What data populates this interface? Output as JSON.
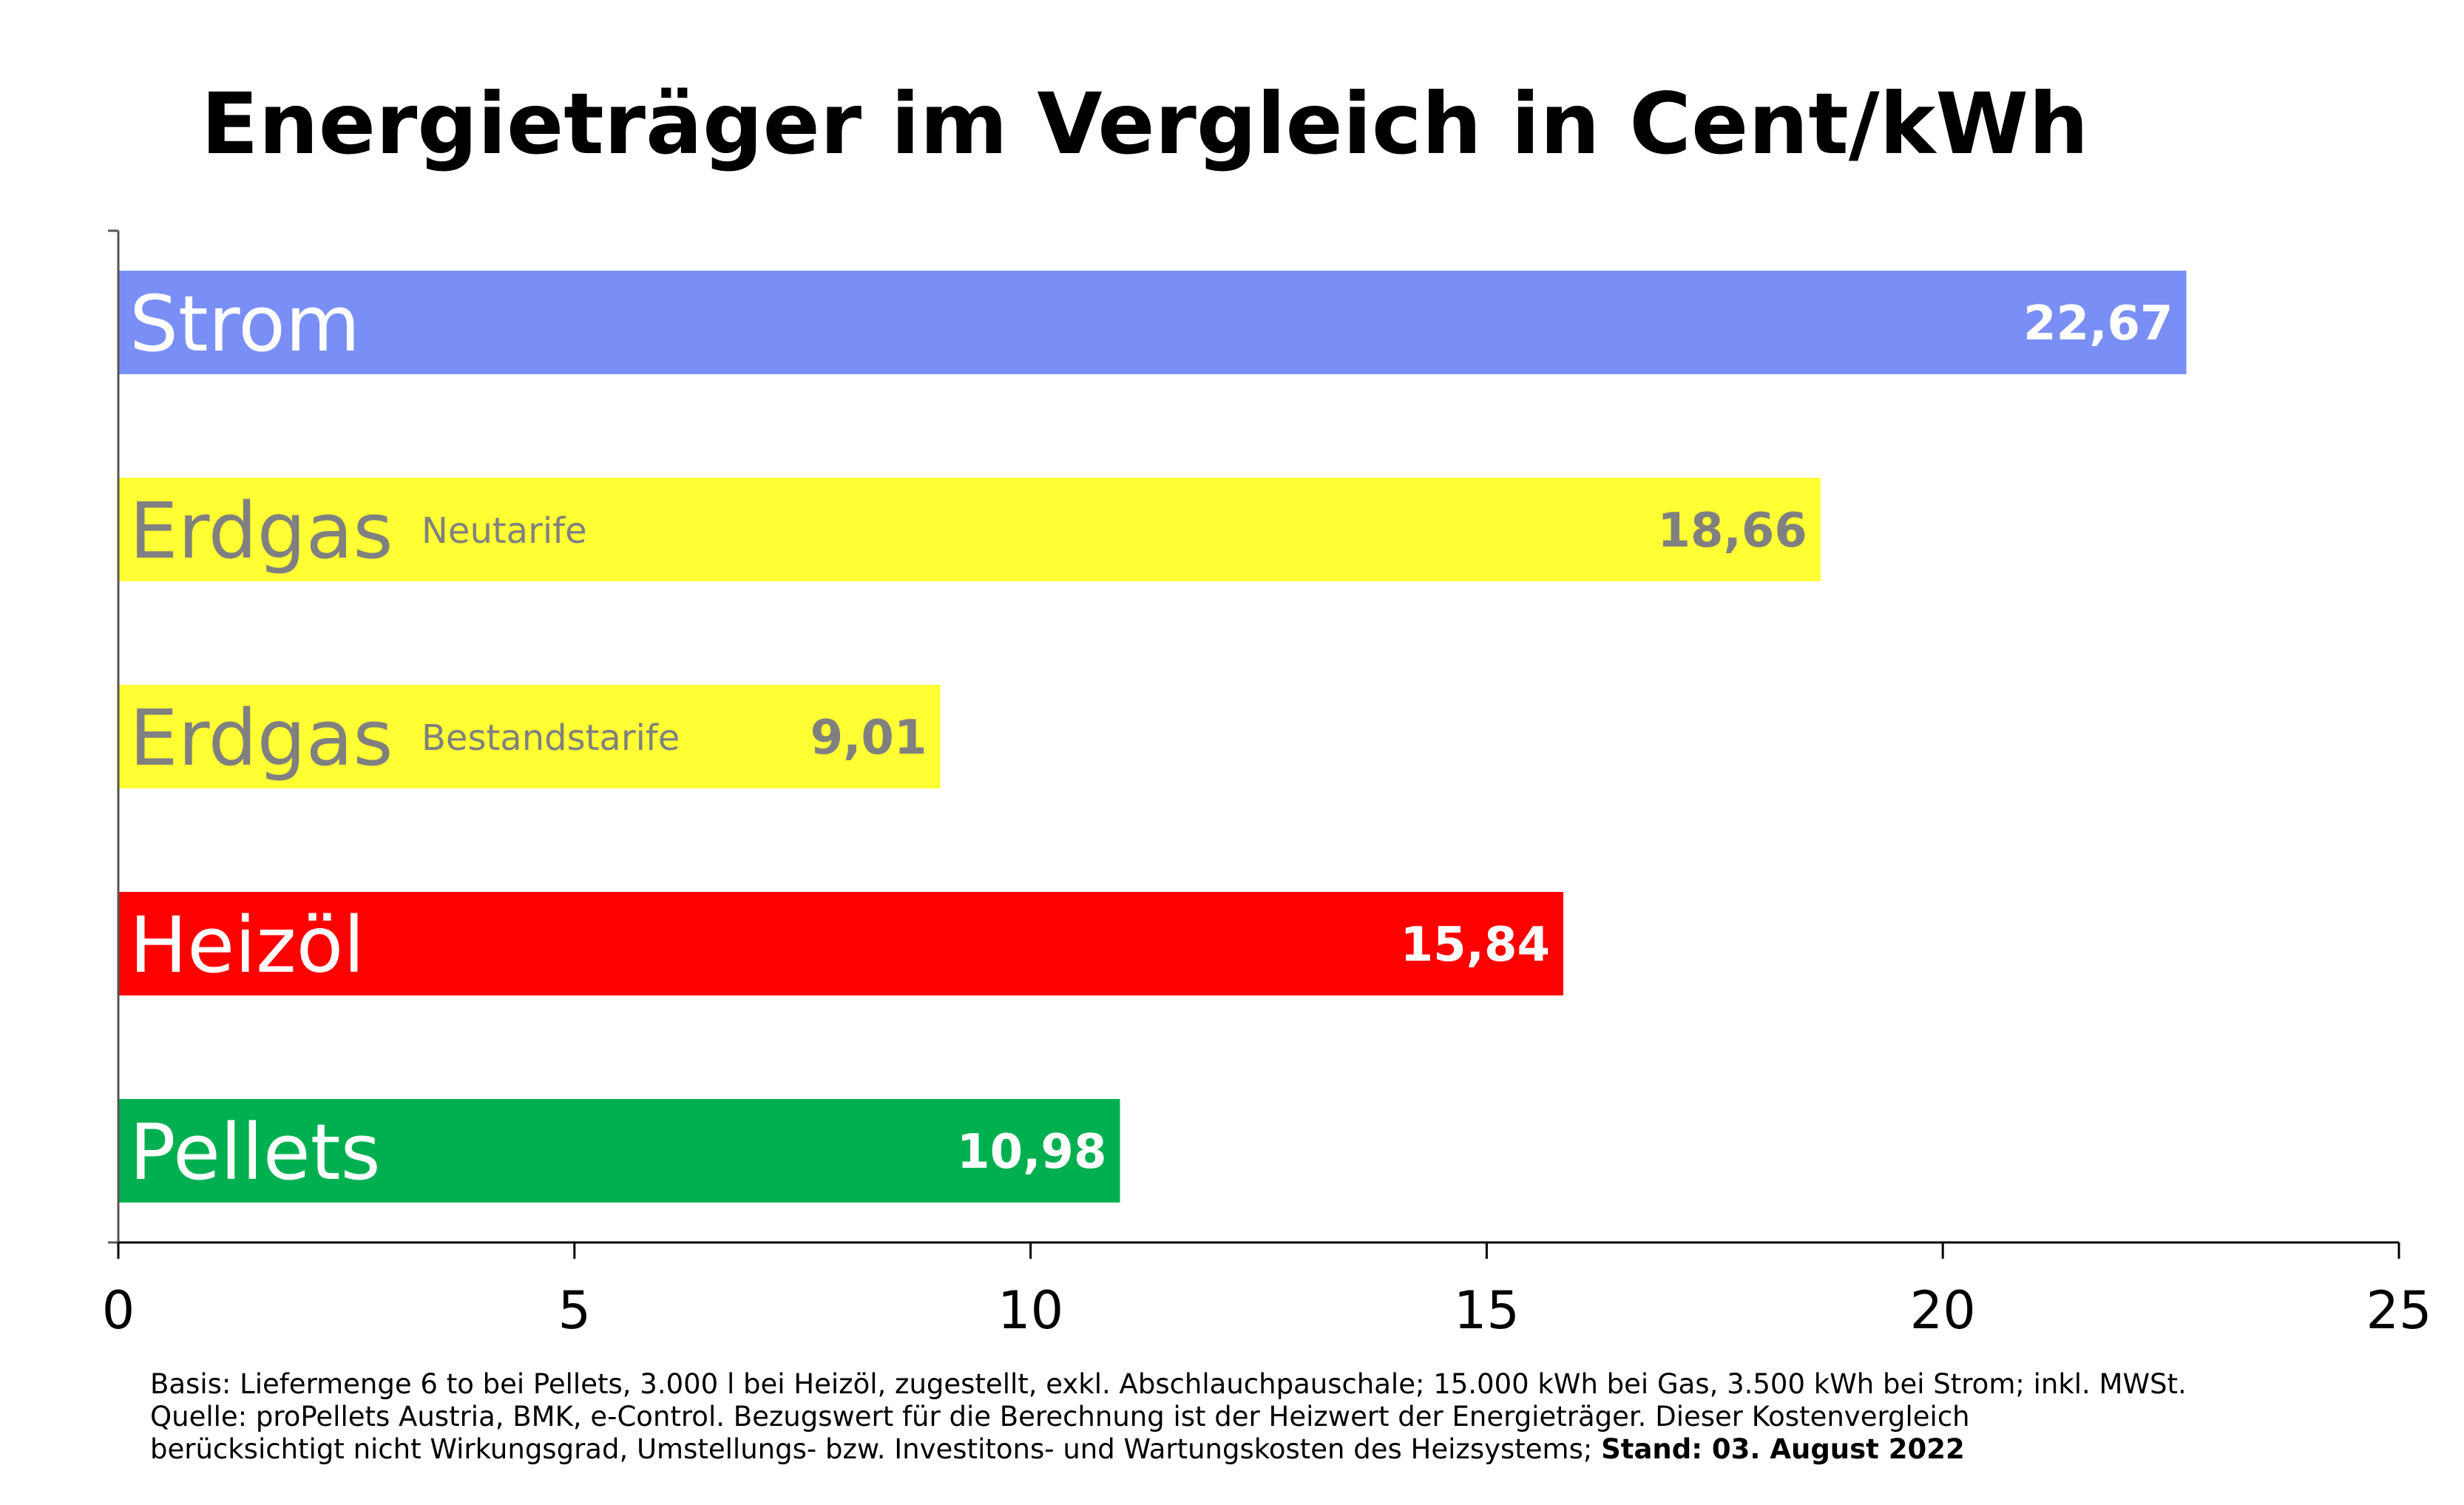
{
  "chart_data": {
    "type": "bar",
    "orientation": "horizontal",
    "title": "Energieträger im Vergleich in Cent/kWh",
    "xlim": [
      0,
      25
    ],
    "x_ticks": [
      0,
      5,
      10,
      15,
      20,
      25
    ],
    "grid": false,
    "legend": "none",
    "bars": [
      {
        "label": "Strom",
        "sublabel": "",
        "value": 22.67,
        "value_label": "22,67",
        "color": "#7a8ff5",
        "text_color": "#ffffff"
      },
      {
        "label": "Erdgas",
        "sublabel": "Neutarife",
        "value": 18.66,
        "value_label": "18,66",
        "color": "#ffff33",
        "text_color": "#808080"
      },
      {
        "label": "Erdgas",
        "sublabel": "Bestandstarife",
        "value": 9.01,
        "value_label": "9,01",
        "color": "#ffff33",
        "text_color": "#808080"
      },
      {
        "label": "Heizöl",
        "sublabel": "",
        "value": 15.84,
        "value_label": "15,84",
        "color": "#ff0000",
        "text_color": "#ffffff"
      },
      {
        "label": "Pellets",
        "sublabel": "",
        "value": 10.98,
        "value_label": "10,98",
        "color": "#00b050",
        "text_color": "#ffffff"
      }
    ]
  },
  "footnote": {
    "line1": "Basis: Liefermenge 6 to bei Pellets, 3.000 l bei Heizöl, zugestellt, exkl. Abschlauchpauschale; 15.000 kWh bei Gas, 3.500 kWh bei Strom; inkl. MWSt.",
    "line2": "Quelle: proPellets Austria, BMK, e-Control. Bezugswert für die Berechnung ist der Heizwert der Energieträger. Dieser Kostenvergleich",
    "line3": "berücksichtigt nicht Wirkungsgrad, Umstellungs- bzw. Investitons- und Wartungskosten des Heizsystems; ",
    "stand": "Stand: 03. August 2022"
  }
}
